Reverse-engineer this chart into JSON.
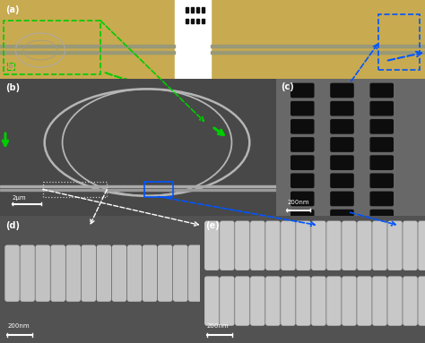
{
  "fig_width": 4.74,
  "fig_height": 3.83,
  "dpi": 100,
  "panel_a": {
    "label": "(a)",
    "bg_color": "#c8aa50"
  },
  "panel_b": {
    "label": "(b)",
    "bg_color": "#484848",
    "scale_text": "2μm"
  },
  "panel_c": {
    "label": "(c)",
    "bg_color": "#606060",
    "scale_text": "200nm"
  },
  "panel_d": {
    "label": "(d)",
    "bg_color": "#505050",
    "scale_text": "200nm"
  },
  "panel_e": {
    "label": "(e)",
    "bg_color": "#505050",
    "scale_text": "200nm"
  },
  "label_fontsize": 7,
  "green": "#00cc00",
  "blue": "#0055ff",
  "white": "#ffffff",
  "black": "#111111",
  "light_gray": "#c0c0c0",
  "mid_gray": "#888888"
}
